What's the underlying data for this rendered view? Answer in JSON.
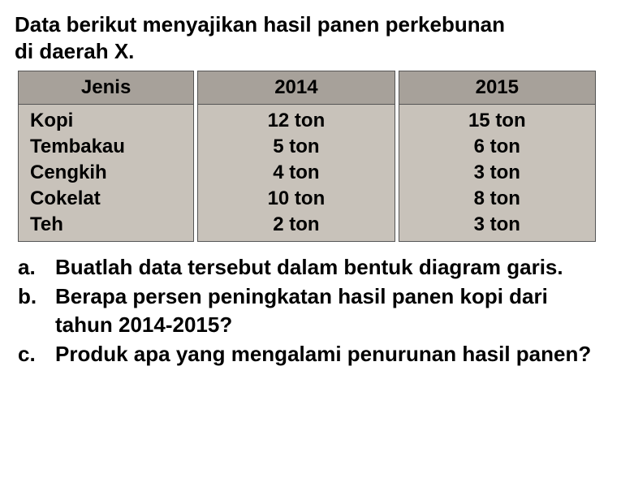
{
  "intro_line1": "Data berikut menyajikan hasil panen perkebunan",
  "intro_line2": "di daerah X.",
  "table": {
    "type": "table",
    "header_bg": "#a7a19a",
    "body_bg": "#c8c2ba",
    "border_color": "#555555",
    "columns": [
      "Jenis",
      "2014",
      "2015"
    ],
    "rows": [
      [
        "Kopi",
        "12 ton",
        "15 ton"
      ],
      [
        "Tembakau",
        "5 ton",
        "6 ton"
      ],
      [
        "Cengkih",
        "4 ton",
        "3 ton"
      ],
      [
        "Cokelat",
        "10 ton",
        "8 ton"
      ],
      [
        "Teh",
        "2 ton",
        "3 ton"
      ]
    ],
    "font_size": 24,
    "font_weight": "bold"
  },
  "questions": {
    "a": {
      "label": "a.",
      "text": "Buatlah data tersebut dalam bentuk diagram garis."
    },
    "b": {
      "label": "b.",
      "text": "Berapa persen peningkatan hasil panen kopi dari tahun 2014-2015?"
    },
    "c": {
      "label": "c.",
      "text": "Produk apa yang mengalami penurunan hasil panen?"
    }
  },
  "colors": {
    "text": "#000000",
    "background": "#ffffff"
  }
}
